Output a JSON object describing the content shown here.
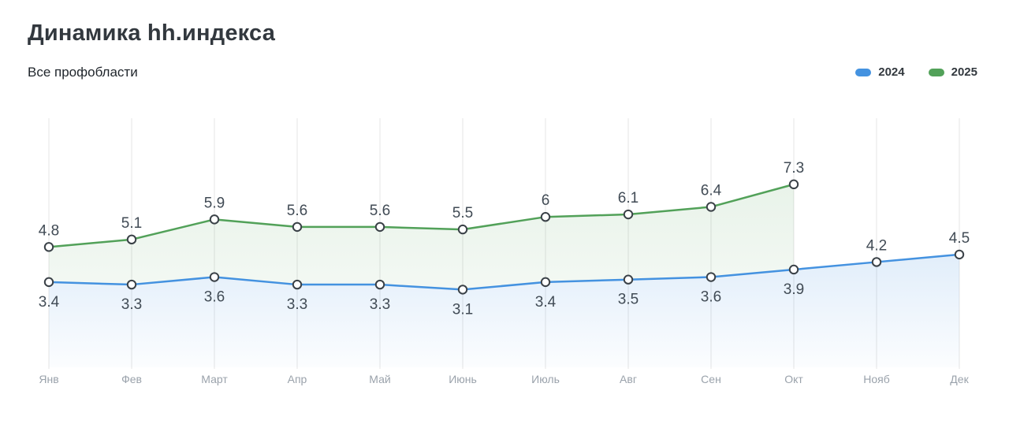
{
  "header": {
    "title": "Динамика hh.индекса",
    "subtitle": "Все профобласти"
  },
  "legend": [
    {
      "label": "2024",
      "color": "#4492e0"
    },
    {
      "label": "2025",
      "color": "#52a159"
    }
  ],
  "chart_data": {
    "type": "line",
    "title": "Динамика hh.индекса",
    "subtitle": "Все профобласти",
    "categories": [
      "Янв",
      "Фев",
      "Март",
      "Апр",
      "Май",
      "Июнь",
      "Июль",
      "Авг",
      "Сен",
      "Окт",
      "Нояб",
      "Дек"
    ],
    "series": [
      {
        "name": "2024",
        "color": "#4492e0",
        "values": [
          3.4,
          3.3,
          3.6,
          3.3,
          3.3,
          3.1,
          3.4,
          3.5,
          3.6,
          3.9,
          4.2,
          4.5
        ],
        "label_side": [
          "below",
          "below",
          "below",
          "below",
          "below",
          "below",
          "below",
          "below",
          "below",
          "below",
          "above",
          "above"
        ]
      },
      {
        "name": "2025",
        "color": "#52a159",
        "values": [
          4.8,
          5.1,
          5.9,
          5.6,
          5.6,
          5.5,
          6,
          6.1,
          6.4,
          7.3
        ],
        "label_side": [
          "above",
          "above",
          "above",
          "above",
          "above",
          "above",
          "above",
          "above",
          "above",
          "above"
        ]
      }
    ],
    "ylim": [
      0,
      10
    ],
    "grid": "vertical",
    "legend_position": "top-right",
    "marker": "open-circle",
    "area_fill": true,
    "colors": {
      "grid": "#ededed",
      "axis_label": "#9aa2ab",
      "data_label": "#414b55",
      "marker_stroke": "#3a4147",
      "marker_fill": "#ffffff"
    }
  }
}
